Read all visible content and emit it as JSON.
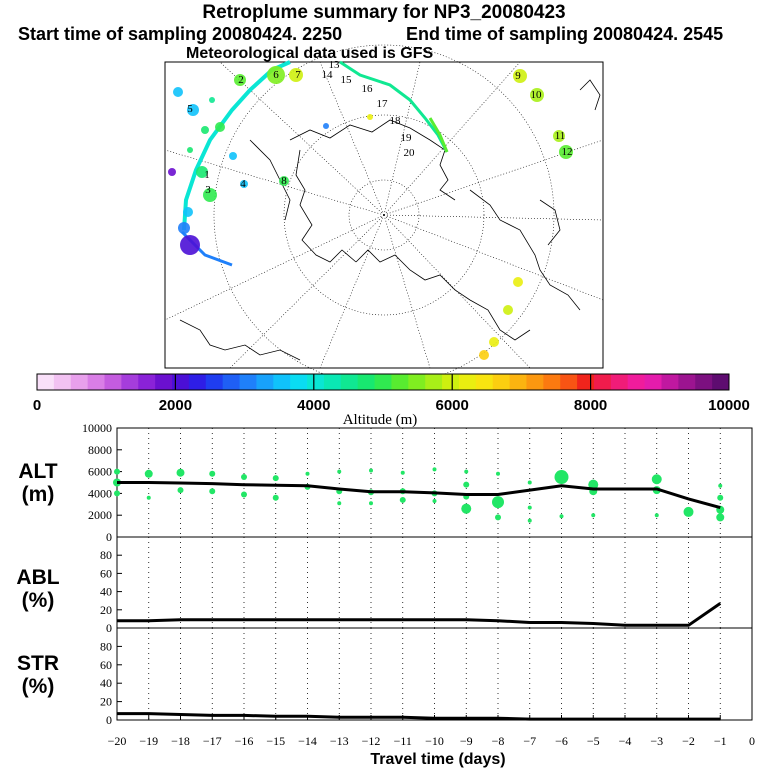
{
  "header": {
    "title": "Retroplume summary for NP3_20080423",
    "start": "Start time of sampling 20080424.  2250",
    "end": "End time of sampling 20080424.  2545",
    "met": "Meteorological data used is GFS"
  },
  "colorbar": {
    "label": "Altitude (m)",
    "ticks": [
      "0",
      "2000",
      "4000",
      "6000",
      "8000",
      "10000"
    ],
    "colors": [
      "#f9e0f9",
      "#f2c2f2",
      "#e8a0ec",
      "#d97ee6",
      "#c45cdf",
      "#a53ddc",
      "#8a22d8",
      "#6b10cf",
      "#4b0fd6",
      "#2e1ee6",
      "#1f3df0",
      "#1f5ff5",
      "#1f80fa",
      "#18a2fb",
      "#10c2fb",
      "#0adcf2",
      "#0ae6d4",
      "#0ae8b4",
      "#10e892",
      "#18e870",
      "#30ea50",
      "#58ec30",
      "#80ee20",
      "#a8ef18",
      "#cef010",
      "#eaee10",
      "#f8e410",
      "#fcce10",
      "#fcb410",
      "#fc9810",
      "#fc7a10",
      "#f85414",
      "#f0241c",
      "#f01c4c",
      "#f01c78",
      "#f01c9c",
      "#e41cac",
      "#c018a0",
      "#9c1490",
      "#7c1080",
      "#5e0c70"
    ]
  },
  "map": {
    "day_labels": [
      {
        "t": "1",
        "c": "#10e8a0"
      },
      {
        "t": "2",
        "c": "#a8ef18"
      },
      {
        "t": "3",
        "c": "#30ea50"
      },
      {
        "t": "4",
        "c": "#18e870"
      },
      {
        "t": "5",
        "c": "#10c2fb"
      },
      {
        "t": "6",
        "c": "#a8ef18"
      },
      {
        "t": "7",
        "c": "#18e870"
      },
      {
        "t": "8",
        "c": "#30ea50"
      },
      {
        "t": "9",
        "c": "#cef010"
      },
      {
        "t": "10",
        "c": "#10c2fb"
      },
      {
        "t": "11",
        "c": "#eaee10"
      },
      {
        "t": "12",
        "c": "#cef010"
      },
      {
        "t": "13",
        "c": "#000000"
      },
      {
        "t": "14",
        "c": "#000000"
      },
      {
        "t": "15",
        "c": "#000000"
      },
      {
        "t": "16",
        "c": "#000000"
      },
      {
        "t": "17",
        "c": "#000000"
      },
      {
        "t": "18",
        "c": "#000000"
      },
      {
        "t": "19",
        "c": "#000000"
      },
      {
        "t": "20",
        "c": "#000000"
      }
    ]
  },
  "chart_data": [
    {
      "type": "scatter",
      "title": "ALT (m)",
      "ylabel": "ALT (m)",
      "xlabel": "Travel time (days)",
      "xlim": [
        -20,
        0
      ],
      "ylim": [
        0,
        10000
      ],
      "yticks": [
        0,
        2000,
        4000,
        6000,
        8000,
        10000
      ],
      "line": {
        "x": [
          -20,
          -19,
          -18,
          -17,
          -16,
          -15,
          -14,
          -13,
          -12,
          -11,
          -10,
          -9,
          -8,
          -7,
          -6,
          -5,
          -4,
          -3,
          -2,
          -1
        ],
        "y": [
          5000,
          5000,
          4950,
          4900,
          4800,
          4750,
          4700,
          4400,
          4150,
          4150,
          4050,
          3900,
          3900,
          4300,
          4700,
          4400,
          4400,
          4400,
          3500,
          2700
        ]
      },
      "points": [
        {
          "x": -20,
          "y": 6000,
          "r": 3
        },
        {
          "x": -20,
          "y": 4000,
          "r": 3
        },
        {
          "x": -20,
          "y": 5000,
          "r": 4
        },
        {
          "x": -19,
          "y": 5800,
          "r": 4
        },
        {
          "x": -19,
          "y": 3600,
          "r": 2
        },
        {
          "x": -18,
          "y": 5900,
          "r": 4
        },
        {
          "x": -18,
          "y": 4300,
          "r": 3
        },
        {
          "x": -17,
          "y": 5800,
          "r": 3
        },
        {
          "x": -17,
          "y": 4200,
          "r": 3
        },
        {
          "x": -16,
          "y": 5500,
          "r": 3
        },
        {
          "x": -16,
          "y": 3900,
          "r": 3
        },
        {
          "x": -15,
          "y": 5400,
          "r": 3
        },
        {
          "x": -15,
          "y": 3600,
          "r": 3
        },
        {
          "x": -14,
          "y": 5800,
          "r": 2
        },
        {
          "x": -14,
          "y": 4600,
          "r": 3
        },
        {
          "x": -13,
          "y": 6000,
          "r": 2
        },
        {
          "x": -13,
          "y": 4200,
          "r": 3
        },
        {
          "x": -13,
          "y": 3100,
          "r": 2
        },
        {
          "x": -12,
          "y": 6100,
          "r": 2
        },
        {
          "x": -12,
          "y": 4100,
          "r": 3
        },
        {
          "x": -12,
          "y": 3100,
          "r": 2
        },
        {
          "x": -11,
          "y": 5900,
          "r": 2
        },
        {
          "x": -11,
          "y": 4200,
          "r": 3
        },
        {
          "x": -11,
          "y": 3400,
          "r": 3
        },
        {
          "x": -10,
          "y": 6200,
          "r": 2
        },
        {
          "x": -10,
          "y": 4000,
          "r": 3
        },
        {
          "x": -10,
          "y": 3300,
          "r": 2
        },
        {
          "x": -9,
          "y": 6000,
          "r": 2
        },
        {
          "x": -9,
          "y": 4800,
          "r": 3
        },
        {
          "x": -9,
          "y": 3700,
          "r": 3
        },
        {
          "x": -9,
          "y": 2600,
          "r": 5
        },
        {
          "x": -8,
          "y": 5800,
          "r": 2
        },
        {
          "x": -8,
          "y": 3200,
          "r": 6
        },
        {
          "x": -8,
          "y": 1800,
          "r": 3
        },
        {
          "x": -7,
          "y": 5000,
          "r": 2
        },
        {
          "x": -7,
          "y": 2700,
          "r": 2
        },
        {
          "x": -7,
          "y": 1500,
          "r": 2
        },
        {
          "x": -6,
          "y": 5500,
          "r": 7
        },
        {
          "x": -6,
          "y": 1900,
          "r": 2
        },
        {
          "x": -5,
          "y": 4800,
          "r": 5
        },
        {
          "x": -5,
          "y": 4200,
          "r": 4
        },
        {
          "x": -5,
          "y": 2000,
          "r": 2
        },
        {
          "x": -3,
          "y": 5300,
          "r": 5
        },
        {
          "x": -3,
          "y": 4300,
          "r": 4
        },
        {
          "x": -3,
          "y": 2000,
          "r": 2
        },
        {
          "x": -2,
          "y": 2300,
          "r": 5
        },
        {
          "x": -1,
          "y": 4700,
          "r": 2
        },
        {
          "x": -1,
          "y": 3600,
          "r": 3
        },
        {
          "x": -1,
          "y": 2500,
          "r": 4
        },
        {
          "x": -1,
          "y": 1800,
          "r": 4
        }
      ]
    },
    {
      "type": "line",
      "title": "ABL (%)",
      "ylabel": "ABL (%)",
      "xlabel": "Travel time (days)",
      "xlim": [
        -20,
        0
      ],
      "ylim": [
        0,
        100
      ],
      "yticks": [
        0,
        20,
        40,
        60,
        80
      ],
      "x": [
        -20,
        -19,
        -18,
        -17,
        -16,
        -15,
        -14,
        -13,
        -12,
        -11,
        -10,
        -9,
        -8,
        -7,
        -6,
        -5,
        -4,
        -3,
        -2,
        -1
      ],
      "y": [
        8,
        8,
        9,
        9,
        9,
        9,
        9,
        9,
        9,
        9,
        9,
        9,
        8,
        6,
        6,
        5,
        3,
        3,
        3,
        27
      ]
    },
    {
      "type": "line",
      "title": "STR (%)",
      "ylabel": "STR (%)",
      "xlabel": "Travel time (days)",
      "xlim": [
        -20,
        0
      ],
      "ylim": [
        0,
        100
      ],
      "yticks": [
        0,
        20,
        40,
        60,
        80
      ],
      "xticks": [
        -20,
        -19,
        -18,
        -17,
        -16,
        -15,
        -14,
        -13,
        -12,
        -11,
        -10,
        -9,
        -8,
        -7,
        -6,
        -5,
        -4,
        -3,
        -2,
        -1,
        0
      ],
      "x": [
        -20,
        -19,
        -18,
        -17,
        -16,
        -15,
        -14,
        -13,
        -12,
        -11,
        -10,
        -9,
        -8,
        -7,
        -6,
        -5,
        -4,
        -3,
        -2,
        -1
      ],
      "y": [
        7,
        7,
        6,
        5,
        5,
        4,
        4,
        3,
        3,
        3,
        2,
        2,
        2,
        1,
        1,
        1,
        1,
        1,
        1,
        1
      ]
    }
  ],
  "panel_labels": {
    "alt": [
      "ALT",
      "(m)"
    ],
    "abl": [
      "ABL",
      "(%)"
    ],
    "str": [
      "STR",
      "(%)"
    ]
  }
}
